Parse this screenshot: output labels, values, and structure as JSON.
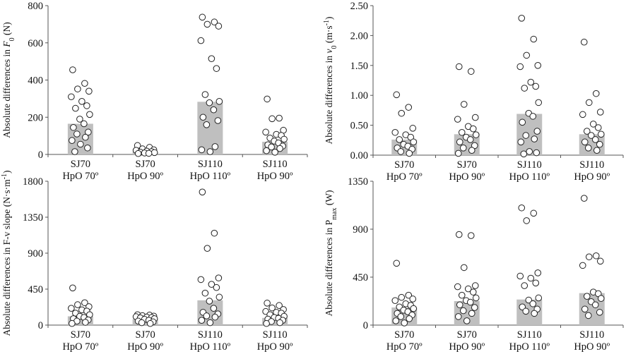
{
  "chart_data": [
    {
      "type": "bar",
      "ylabel": "Absolute differences in F0 (N)",
      "ylabel_parts": [
        {
          "t": "Absolute differences in "
        },
        {
          "t": "F",
          "it": true
        },
        {
          "t": "0",
          "sub": true
        },
        {
          "t": " (N)"
        }
      ],
      "ylim": [
        0,
        800
      ],
      "yticks": [
        0,
        200,
        400,
        600,
        800
      ],
      "ytick_labels": [
        "0",
        "200",
        "400",
        "600",
        "800"
      ],
      "categories": [
        [
          "SJ70",
          "HpO 70º"
        ],
        [
          "SJ70",
          "HpO 90º"
        ],
        [
          "SJ110",
          "HpO 110º"
        ],
        [
          "SJ110",
          "HpO 90º"
        ]
      ],
      "values": [
        165,
        15,
        283,
        68
      ],
      "points": [
        [
          455,
          382,
          352,
          340,
          310,
          285,
          262,
          248,
          215,
          190,
          165,
          145,
          120,
          110,
          92,
          75,
          55,
          35,
          15
        ],
        [
          48,
          38,
          30,
          25,
          22,
          18,
          15,
          12,
          10,
          8,
          6,
          5
        ],
        [
          738,
          712,
          700,
          690,
          612,
          515,
          462,
          322,
          285,
          278,
          240,
          200,
          182,
          160,
          42,
          25,
          15
        ],
        [
          298,
          195,
          192,
          130,
          120,
          108,
          102,
          88,
          82,
          72,
          62,
          52,
          45,
          40,
          32,
          20,
          12
        ]
      ]
    },
    {
      "type": "bar",
      "ylabel": "Absolute differences in v0 (m·s-1)",
      "ylabel_parts": [
        {
          "t": "Absolute differences in "
        },
        {
          "t": "v",
          "it": true
        },
        {
          "t": "0",
          "sub": true
        },
        {
          "t": " (m·s"
        },
        {
          "t": "-1",
          "sup": true
        },
        {
          "t": ")"
        }
      ],
      "ylim": [
        0,
        2.5
      ],
      "yticks": [
        0,
        0.5,
        1.0,
        1.5,
        2.0,
        2.5
      ],
      "ytick_labels": [
        "0.00",
        "0.50",
        "1.00",
        "1.50",
        "2.00",
        "2.50"
      ],
      "categories": [
        [
          "SJ70",
          "HpO 70º"
        ],
        [
          "SJ70",
          "HpO 90º"
        ],
        [
          "SJ110",
          "HpO 110º"
        ],
        [
          "SJ110",
          "HpO 90º"
        ]
      ],
      "values": [
        0.26,
        0.35,
        0.69,
        0.35
      ],
      "points": [
        [
          1.01,
          0.8,
          0.7,
          0.45,
          0.38,
          0.34,
          0.3,
          0.26,
          0.22,
          0.18,
          0.15,
          0.12,
          0.1,
          0.06,
          0.03
        ],
        [
          1.48,
          1.4,
          0.85,
          0.63,
          0.6,
          0.48,
          0.44,
          0.38,
          0.34,
          0.3,
          0.26,
          0.22,
          0.16,
          0.12,
          0.08,
          0.03
        ],
        [
          2.29,
          1.94,
          1.67,
          1.5,
          1.48,
          1.22,
          1.15,
          1.12,
          0.88,
          0.7,
          0.65,
          0.55,
          0.4,
          0.33,
          0.27,
          0.22,
          0.06,
          0.04,
          0.02
        ],
        [
          1.89,
          1.03,
          0.88,
          0.72,
          0.68,
          0.52,
          0.46,
          0.4,
          0.35,
          0.33,
          0.26,
          0.22,
          0.18,
          0.12,
          0.08
        ]
      ]
    },
    {
      "type": "bar",
      "ylabel": "Absolute differences in F-v slope (N·s·m-1)",
      "ylabel_parts": [
        {
          "t": "Absolute differences in F-v slope (N·s·m"
        },
        {
          "t": "-1",
          "sup": true
        },
        {
          "t": ")"
        }
      ],
      "ylim": [
        0,
        1800
      ],
      "yticks": [
        0,
        450,
        900,
        1350,
        1800
      ],
      "ytick_labels": [
        "0",
        "450",
        "900",
        "1350",
        "1800"
      ],
      "categories": [
        [
          "SJ70",
          "HpO 70º"
        ],
        [
          "SJ70",
          "HpO 90º"
        ],
        [
          "SJ110",
          "HpO 110º"
        ],
        [
          "SJ110",
          "HpO 90º"
        ]
      ],
      "values": [
        110,
        75,
        310,
        90
      ],
      "points": [
        [
          465,
          280,
          255,
          230,
          210,
          190,
          175,
          150,
          130,
          110,
          95,
          80,
          65,
          50,
          35,
          20
        ],
        [
          130,
          125,
          118,
          112,
          105,
          100,
          95,
          90,
          80,
          72,
          60,
          50,
          40,
          30,
          20
        ],
        [
          1665,
          1150,
          960,
          590,
          570,
          510,
          470,
          400,
          350,
          300,
          210,
          160,
          140,
          115,
          100,
          60,
          30
        ],
        [
          275,
          245,
          215,
          195,
          170,
          160,
          150,
          130,
          110,
          95,
          85,
          75,
          60,
          45,
          30,
          20
        ]
      ]
    },
    {
      "type": "bar",
      "ylabel": "Absolute differences in Pmax (W)",
      "ylabel_parts": [
        {
          "t": "Absolute differences in P"
        },
        {
          "t": "max",
          "sub": true
        },
        {
          "t": " (W)"
        }
      ],
      "ylim": [
        0,
        1350
      ],
      "yticks": [
        0,
        450,
        900,
        1350
      ],
      "ytick_labels": [
        "0",
        "450",
        "900",
        "1350"
      ],
      "categories": [
        [
          "SJ70",
          "HpO 70º"
        ],
        [
          "SJ70",
          "HpO 90º"
        ],
        [
          "SJ110",
          "HpO 110º"
        ],
        [
          "SJ110",
          "HpO 90º"
        ]
      ],
      "values": [
        165,
        225,
        240,
        300
      ],
      "points": [
        [
          580,
          280,
          260,
          245,
          230,
          200,
          185,
          170,
          155,
          140,
          125,
          110,
          95,
          80,
          60,
          40,
          20
        ],
        [
          850,
          840,
          540,
          370,
          360,
          340,
          310,
          280,
          255,
          230,
          215,
          190,
          165,
          135,
          110,
          80,
          40
        ],
        [
          1100,
          1050,
          980,
          490,
          460,
          440,
          395,
          370,
          255,
          235,
          200,
          170,
          150,
          130,
          110
        ],
        [
          1190,
          650,
          640,
          600,
          560,
          310,
          295,
          270,
          250,
          220,
          190,
          150,
          120,
          90
        ]
      ]
    }
  ]
}
